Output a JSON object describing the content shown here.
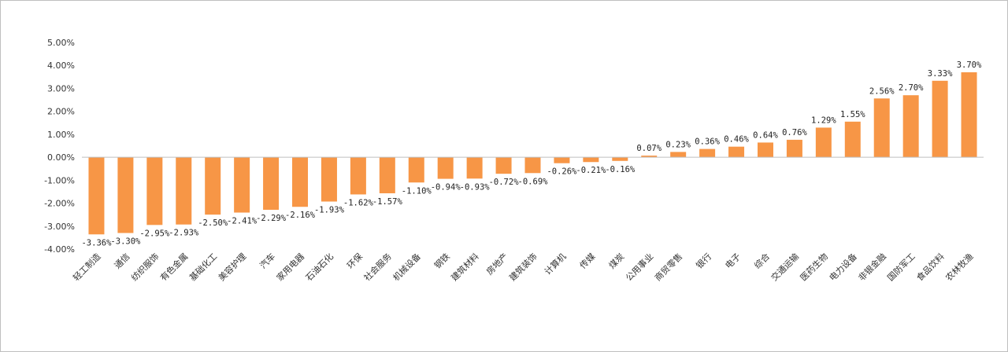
{
  "chart_data": {
    "type": "bar",
    "title": "",
    "xlabel": "",
    "ylabel": "",
    "ylim": [
      -4.0,
      5.0
    ],
    "yticks": [
      5.0,
      4.0,
      3.0,
      2.0,
      1.0,
      0.0,
      -1.0,
      -2.0,
      -3.0,
      -4.0
    ],
    "ytick_labels": [
      "5.00%",
      "4.00%",
      "3.00%",
      "2.00%",
      "1.00%",
      "0.00%",
      "-1.00%",
      "-2.00%",
      "-3.00%",
      "-4.00%"
    ],
    "grid": false,
    "legend": "none",
    "bar_color": "#F79646",
    "categories": [
      "轻工制造",
      "通信",
      "纺织服饰",
      "有色金属",
      "基础化工",
      "美容护理",
      "汽车",
      "家用电器",
      "石油石化",
      "环保",
      "社会服务",
      "机械设备",
      "钢铁",
      "建筑材料",
      "房地产",
      "建筑装饰",
      "计算机",
      "传媒",
      "煤炭",
      "公用事业",
      "商贸零售",
      "银行",
      "电子",
      "综合",
      "交通运输",
      "医药生物",
      "电力设备",
      "非银金融",
      "国防军工",
      "食品饮料",
      "农林牧渔"
    ],
    "values": [
      -3.36,
      -3.3,
      -2.95,
      -2.93,
      -2.5,
      -2.41,
      -2.29,
      -2.16,
      -1.93,
      -1.62,
      -1.57,
      -1.1,
      -0.94,
      -0.93,
      -0.72,
      -0.69,
      -0.26,
      -0.21,
      -0.16,
      0.07,
      0.23,
      0.36,
      0.46,
      0.64,
      0.76,
      1.29,
      1.55,
      2.56,
      2.7,
      3.33,
      3.7
    ],
    "value_labels": [
      "-3.36%",
      "-3.30%",
      "-2.95%",
      "-2.93%",
      "-2.50%",
      "-2.41%",
      "-2.29%",
      "-2.16%",
      "-1.93%",
      "-1.62%",
      "-1.57%",
      "-1.10%",
      "-0.94%",
      "-0.93%",
      "-0.72%",
      "-0.69%",
      "-0.26%",
      "-0.21%",
      "-0.16%",
      "0.07%",
      "0.23%",
      "0.36%",
      "0.46%",
      "0.64%",
      "0.76%",
      "1.29%",
      "1.55%",
      "2.56%",
      "2.70%",
      "3.33%",
      "3.70%"
    ]
  }
}
